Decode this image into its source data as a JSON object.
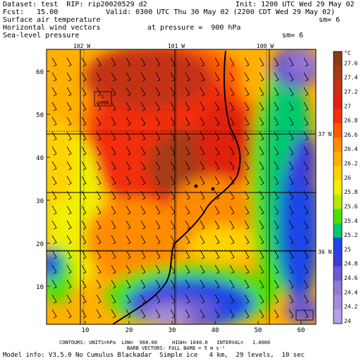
{
  "header": {
    "dataset": "Dataset: test  RIP: rip20020529 d2",
    "init": "Init: 1200 UTC Wed 29 May 02",
    "fcst": "Fcst:   15.00",
    "valid": "Valid: 0300 UTC Thu 30 May 02 (2200 CDT Wed 29 May 02)",
    "field1": "Surface air temperature",
    "field1_sm": "sm= 6",
    "field2": "Horizontal wind vectors",
    "field2_pressure": "at pressure =  900 hPa",
    "field3": "Sea-level pressure",
    "field3_sm": "sm= 6"
  },
  "map": {
    "longitude_labels": [
      "102 W",
      "101 W",
      "100 W"
    ],
    "latitude_labels": [
      "37 N",
      "36 N"
    ],
    "x_ticks": [
      "10",
      "20",
      "30",
      "40",
      "50",
      "60"
    ],
    "y_ticks": [
      "10",
      "20",
      "30",
      "40",
      "50",
      "60"
    ],
    "x_range": [
      1,
      64
    ],
    "y_range": [
      1,
      64
    ],
    "low_center": {
      "symbol": "L",
      "value": "1006"
    }
  },
  "colorbar": {
    "unit": "°C",
    "levels": [
      "27.6",
      "27.4",
      "27.2",
      "27",
      "26.8",
      "26.6",
      "26.4",
      "26.2",
      "26",
      "25.8",
      "25.6",
      "25.4",
      "25.2",
      "25",
      "24.8",
      "24.6",
      "24.4",
      "24.2",
      "24"
    ],
    "colors": [
      "#8B3A1A",
      "#A63A14",
      "#C43218",
      "#E02010",
      "#F22E0E",
      "#FF5A00",
      "#FF8C00",
      "#FFB000",
      "#FFD200",
      "#F0F000",
      "#B4EB00",
      "#50E000",
      "#00C870",
      "#1E46E6",
      "#3C3CDC",
      "#6E5AD2",
      "#9678D2",
      "#A58CD7",
      "#B4A0E6"
    ]
  },
  "footer": {
    "line1": "CONTOURS: UNITS=hPa  LOW=  960.00     HIGH= 1040.0   INTERVAL=   1.0000",
    "line2": "BARB VECTORS: FULL BARB = 5 m s⁻¹",
    "line3": "Model info: V3.5.0 No Cumulus Blackadar  Simple ice   4 km,  29 levels,  10 sec"
  }
}
